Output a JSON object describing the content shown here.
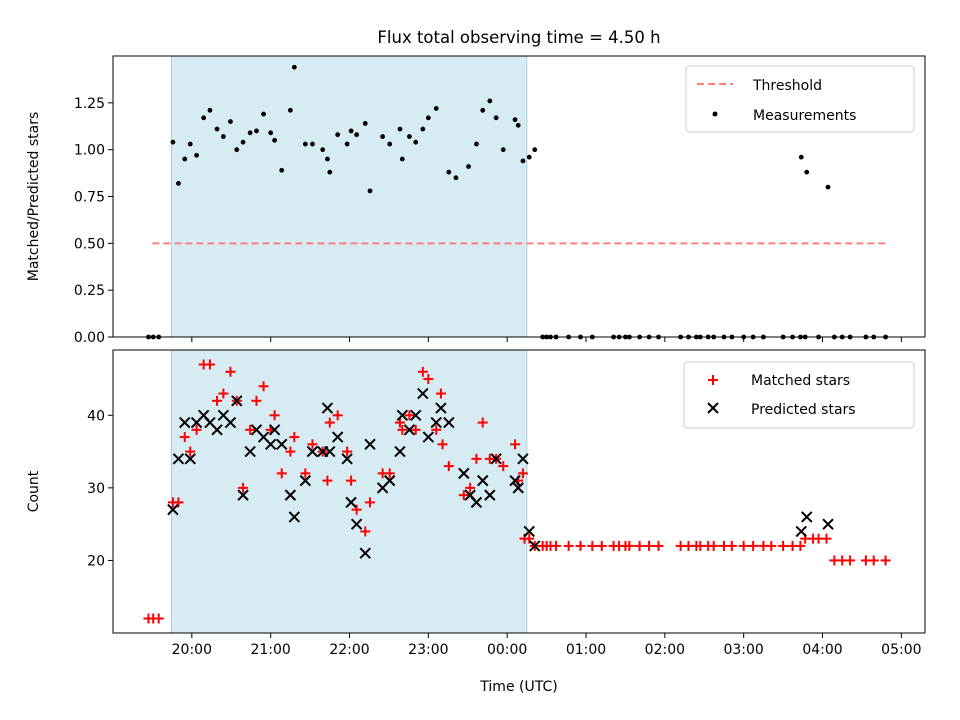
{
  "figure": {
    "title": "Flux total observing time = 4.50 h",
    "xlabel": "Time (UTC)",
    "x_tick_labels": [
      "20:00",
      "21:00",
      "22:00",
      "23:00",
      "00:00",
      "01:00",
      "02:00",
      "03:00",
      "04:00",
      "05:00"
    ]
  },
  "chart_data": [
    {
      "type": "scatter",
      "panel": "top",
      "ylabel": "Matched/Predicted stars",
      "ylim": [
        0,
        1.5
      ],
      "y_ticks": [
        0,
        0.25,
        0.5,
        0.75,
        1.0,
        1.25
      ],
      "y_tick_labels": [
        "0.00",
        "0.25",
        "0.50",
        "0.75",
        "1.00",
        "1.25"
      ],
      "xlim_hours": [
        19.0,
        29.3
      ],
      "x_ticks_hours": [
        20,
        21,
        22,
        23,
        24,
        25,
        26,
        27,
        28,
        29
      ],
      "highlight_span_hours": [
        19.74,
        24.25
      ],
      "highlight_color": "#add8e6",
      "legend": {
        "position": "upper right",
        "entries": [
          "Threshold",
          "Measurements"
        ]
      },
      "threshold": {
        "name": "Threshold",
        "y": 0.5,
        "x_range_hours": [
          19.5,
          28.8
        ],
        "color": "#ff7f7f",
        "style": "dashed"
      },
      "series": [
        {
          "name": "Measurements",
          "color": "#000000",
          "marker": "dot",
          "points": [
            [
              19.45,
              0
            ],
            [
              19.51,
              0
            ],
            [
              19.58,
              0
            ],
            [
              19.76,
              1.04
            ],
            [
              19.83,
              0.82
            ],
            [
              19.91,
              0.95
            ],
            [
              19.98,
              1.03
            ],
            [
              20.06,
              0.97
            ],
            [
              20.15,
              1.17
            ],
            [
              20.23,
              1.21
            ],
            [
              20.32,
              1.11
            ],
            [
              20.4,
              1.07
            ],
            [
              20.49,
              1.15
            ],
            [
              20.57,
              1.0
            ],
            [
              20.65,
              1.04
            ],
            [
              20.74,
              1.09
            ],
            [
              20.82,
              1.1
            ],
            [
              20.91,
              1.19
            ],
            [
              21.0,
              1.09
            ],
            [
              21.05,
              1.05
            ],
            [
              21.14,
              0.89
            ],
            [
              21.25,
              1.21
            ],
            [
              21.3,
              1.44
            ],
            [
              21.44,
              1.03
            ],
            [
              21.53,
              1.03
            ],
            [
              21.66,
              1.0
            ],
            [
              21.72,
              0.95
            ],
            [
              21.75,
              0.88
            ],
            [
              21.85,
              1.08
            ],
            [
              21.97,
              1.03
            ],
            [
              22.02,
              1.1
            ],
            [
              22.09,
              1.08
            ],
            [
              22.2,
              1.14
            ],
            [
              22.26,
              0.78
            ],
            [
              22.42,
              1.07
            ],
            [
              22.51,
              1.03
            ],
            [
              22.64,
              1.11
            ],
            [
              22.67,
              0.95
            ],
            [
              22.76,
              1.07
            ],
            [
              22.84,
              1.04
            ],
            [
              22.93,
              1.11
            ],
            [
              23.0,
              1.17
            ],
            [
              23.1,
              1.22
            ],
            [
              23.26,
              0.88
            ],
            [
              23.35,
              0.85
            ],
            [
              23.51,
              0.91
            ],
            [
              23.61,
              1.03
            ],
            [
              23.69,
              1.21
            ],
            [
              23.78,
              1.26
            ],
            [
              23.86,
              1.17
            ],
            [
              23.95,
              1.0
            ],
            [
              24.1,
              1.16
            ],
            [
              24.14,
              1.13
            ],
            [
              24.2,
              0.94
            ],
            [
              24.28,
              0.96
            ],
            [
              24.35,
              1.0
            ],
            [
              24.45,
              0
            ],
            [
              24.5,
              0
            ],
            [
              24.55,
              0
            ],
            [
              24.62,
              0
            ],
            [
              24.78,
              0
            ],
            [
              24.93,
              0
            ],
            [
              25.08,
              0
            ],
            [
              25.35,
              0
            ],
            [
              25.42,
              0
            ],
            [
              25.5,
              0
            ],
            [
              25.55,
              0
            ],
            [
              25.68,
              0
            ],
            [
              25.8,
              0
            ],
            [
              25.92,
              0
            ],
            [
              26.2,
              0
            ],
            [
              26.3,
              0
            ],
            [
              26.4,
              0
            ],
            [
              26.45,
              0
            ],
            [
              26.55,
              0
            ],
            [
              26.62,
              0
            ],
            [
              26.75,
              0
            ],
            [
              26.85,
              0
            ],
            [
              27.0,
              0
            ],
            [
              27.12,
              0
            ],
            [
              27.25,
              0
            ],
            [
              27.5,
              0
            ],
            [
              27.62,
              0
            ],
            [
              27.72,
              0
            ],
            [
              27.78,
              0
            ],
            [
              27.95,
              0
            ],
            [
              28.15,
              0
            ],
            [
              28.25,
              0
            ],
            [
              28.35,
              0
            ],
            [
              28.55,
              0
            ],
            [
              28.65,
              0
            ],
            [
              28.8,
              0
            ],
            [
              27.73,
              0.96
            ],
            [
              27.8,
              0.88
            ],
            [
              28.07,
              0.8
            ]
          ]
        }
      ]
    },
    {
      "type": "scatter",
      "panel": "bottom",
      "ylabel": "Count",
      "ylim": [
        10,
        49
      ],
      "y_ticks": [
        20,
        30,
        40
      ],
      "y_tick_labels": [
        "20",
        "30",
        "40"
      ],
      "xlim_hours": [
        19.0,
        29.3
      ],
      "x_ticks_hours": [
        20,
        21,
        22,
        23,
        24,
        25,
        26,
        27,
        28,
        29
      ],
      "highlight_span_hours": [
        19.74,
        24.25
      ],
      "highlight_color": "#add8e6",
      "legend": {
        "position": "upper right",
        "entries": [
          "Matched stars",
          "Predicted stars"
        ]
      },
      "series": [
        {
          "name": "Matched stars",
          "color": "#ff0000",
          "marker": "plus",
          "points": [
            [
              19.45,
              12
            ],
            [
              19.51,
              12
            ],
            [
              19.58,
              12
            ],
            [
              19.76,
              28
            ],
            [
              19.83,
              28
            ],
            [
              19.91,
              37
            ],
            [
              19.98,
              35
            ],
            [
              20.06,
              38
            ],
            [
              20.15,
              47
            ],
            [
              20.23,
              47
            ],
            [
              20.32,
              42
            ],
            [
              20.4,
              43
            ],
            [
              20.49,
              46
            ],
            [
              20.57,
              42
            ],
            [
              20.65,
              30
            ],
            [
              20.74,
              38
            ],
            [
              20.82,
              42
            ],
            [
              20.91,
              44
            ],
            [
              21.0,
              38
            ],
            [
              21.05,
              40
            ],
            [
              21.14,
              32
            ],
            [
              21.25,
              35
            ],
            [
              21.3,
              37
            ],
            [
              21.44,
              32
            ],
            [
              21.53,
              36
            ],
            [
              21.66,
              35
            ],
            [
              21.72,
              31
            ],
            [
              21.75,
              39
            ],
            [
              21.85,
              40
            ],
            [
              21.97,
              35
            ],
            [
              22.02,
              31
            ],
            [
              22.09,
              27
            ],
            [
              22.2,
              24
            ],
            [
              22.26,
              28
            ],
            [
              22.42,
              32
            ],
            [
              22.51,
              32
            ],
            [
              22.64,
              39
            ],
            [
              22.67,
              38
            ],
            [
              22.76,
              40
            ],
            [
              22.84,
              38
            ],
            [
              22.93,
              46
            ],
            [
              23.0,
              45
            ],
            [
              23.1,
              38
            ],
            [
              23.16,
              43
            ],
            [
              23.18,
              36
            ],
            [
              23.26,
              33
            ],
            [
              23.45,
              29
            ],
            [
              23.53,
              30
            ],
            [
              23.61,
              34
            ],
            [
              23.69,
              39
            ],
            [
              23.78,
              34
            ],
            [
              23.86,
              34
            ],
            [
              23.95,
              33
            ],
            [
              24.1,
              36
            ],
            [
              24.14,
              31
            ],
            [
              24.2,
              32
            ],
            [
              24.22,
              23
            ],
            [
              24.28,
              23
            ],
            [
              24.35,
              22
            ],
            [
              24.45,
              22
            ],
            [
              24.5,
              22
            ],
            [
              24.55,
              22
            ],
            [
              24.62,
              22
            ],
            [
              24.78,
              22
            ],
            [
              24.93,
              22
            ],
            [
              25.08,
              22
            ],
            [
              25.2,
              22
            ],
            [
              25.35,
              22
            ],
            [
              25.42,
              22
            ],
            [
              25.5,
              22
            ],
            [
              25.55,
              22
            ],
            [
              25.68,
              22
            ],
            [
              25.8,
              22
            ],
            [
              25.92,
              22
            ],
            [
              26.2,
              22
            ],
            [
              26.3,
              22
            ],
            [
              26.4,
              22
            ],
            [
              26.45,
              22
            ],
            [
              26.55,
              22
            ],
            [
              26.62,
              22
            ],
            [
              26.75,
              22
            ],
            [
              26.85,
              22
            ],
            [
              27.0,
              22
            ],
            [
              27.12,
              22
            ],
            [
              27.25,
              22
            ],
            [
              27.35,
              22
            ],
            [
              27.5,
              22
            ],
            [
              27.62,
              22
            ],
            [
              27.72,
              22
            ],
            [
              27.78,
              23
            ],
            [
              27.88,
              23
            ],
            [
              27.95,
              23
            ],
            [
              28.05,
              23
            ],
            [
              28.15,
              20
            ],
            [
              28.25,
              20
            ],
            [
              28.35,
              20
            ],
            [
              28.55,
              20
            ],
            [
              28.65,
              20
            ],
            [
              28.8,
              20
            ]
          ]
        },
        {
          "name": "Predicted stars",
          "color": "#000000",
          "marker": "x",
          "points": [
            [
              19.76,
              27
            ],
            [
              19.83,
              34
            ],
            [
              19.91,
              39
            ],
            [
              19.98,
              34
            ],
            [
              20.06,
              39
            ],
            [
              20.15,
              40
            ],
            [
              20.23,
              39
            ],
            [
              20.32,
              38
            ],
            [
              20.4,
              40
            ],
            [
              20.49,
              39
            ],
            [
              20.57,
              42
            ],
            [
              20.65,
              29
            ],
            [
              20.74,
              35
            ],
            [
              20.82,
              38
            ],
            [
              20.91,
              37
            ],
            [
              21.0,
              36
            ],
            [
              21.05,
              38
            ],
            [
              21.14,
              36
            ],
            [
              21.25,
              29
            ],
            [
              21.3,
              26
            ],
            [
              21.44,
              31
            ],
            [
              21.53,
              35
            ],
            [
              21.66,
              35
            ],
            [
              21.72,
              41
            ],
            [
              21.75,
              35
            ],
            [
              21.85,
              37
            ],
            [
              21.97,
              34
            ],
            [
              22.02,
              28
            ],
            [
              22.09,
              25
            ],
            [
              22.2,
              21
            ],
            [
              22.26,
              36
            ],
            [
              22.42,
              30
            ],
            [
              22.51,
              31
            ],
            [
              22.64,
              35
            ],
            [
              22.67,
              40
            ],
            [
              22.76,
              38
            ],
            [
              22.84,
              40
            ],
            [
              22.93,
              43
            ],
            [
              23.0,
              37
            ],
            [
              23.1,
              39
            ],
            [
              23.16,
              41
            ],
            [
              23.26,
              39
            ],
            [
              23.45,
              32
            ],
            [
              23.53,
              29
            ],
            [
              23.61,
              28
            ],
            [
              23.69,
              31
            ],
            [
              23.78,
              29
            ],
            [
              23.86,
              34
            ],
            [
              24.1,
              31
            ],
            [
              24.14,
              30
            ],
            [
              24.2,
              34
            ],
            [
              24.28,
              24
            ],
            [
              24.35,
              22
            ],
            [
              27.73,
              24
            ],
            [
              27.8,
              26
            ],
            [
              28.07,
              25
            ]
          ]
        }
      ]
    }
  ]
}
